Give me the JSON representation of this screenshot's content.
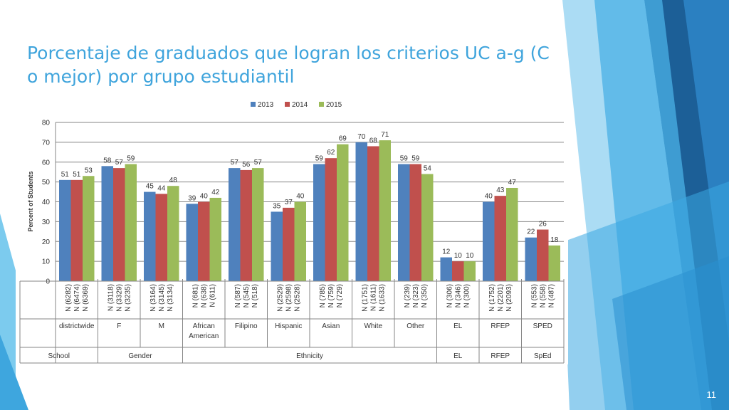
{
  "slide": {
    "title": "Porcentaje de graduados que logran los criterios UC a-g (C o mejor) por grupo estudiantil",
    "number": "11"
  },
  "colors": {
    "title": "#3fa4dc",
    "series": [
      "#4f81bd",
      "#c0504d",
      "#9bbb59"
    ]
  },
  "chart_data": {
    "type": "bar",
    "ylabel": "Percent of Students",
    "ylim": [
      0,
      80
    ],
    "yticks": [
      0,
      10,
      20,
      30,
      40,
      50,
      60,
      70,
      80
    ],
    "grid": true,
    "legend": "top-center",
    "series": [
      {
        "name": "2013",
        "values": [
          51,
          58,
          45,
          39,
          57,
          35,
          59,
          70,
          59,
          12,
          40,
          22
        ]
      },
      {
        "name": "2014",
        "values": [
          51,
          57,
          44,
          40,
          56,
          37,
          62,
          68,
          59,
          10,
          43,
          26
        ]
      },
      {
        "name": "2015",
        "values": [
          53,
          59,
          48,
          42,
          57,
          40,
          69,
          71,
          54,
          10,
          47,
          18
        ]
      }
    ],
    "categories": [
      {
        "label": "districtwide",
        "n": [
          "N (6282)",
          "N (6474)",
          "N (6369)"
        ]
      },
      {
        "label": "F",
        "n": [
          "N (3118)",
          "N (3329)",
          "N (3235)"
        ]
      },
      {
        "label": "M",
        "n": [
          "N (3164)",
          "N (3145)",
          "N (3134)"
        ]
      },
      {
        "label": "African American",
        "n": [
          "N (681)",
          "N (638)",
          "N (611)"
        ]
      },
      {
        "label": "Filipino",
        "n": [
          "N (587)",
          "N (545)",
          "N (518)"
        ]
      },
      {
        "label": "Hispanic",
        "n": [
          "N (2529)",
          "N (2598)",
          "N (2528)"
        ]
      },
      {
        "label": "Asian",
        "n": [
          "N (785)",
          "N (759)",
          "N (729)"
        ]
      },
      {
        "label": "White",
        "n": [
          "N (1751)",
          "N (1611)",
          "N (1633)"
        ]
      },
      {
        "label": "Other",
        "n": [
          "N (239)",
          "N (323)",
          "N (350)"
        ]
      },
      {
        "label": "EL",
        "n": [
          "N (306)",
          "N (346)",
          "N (300)"
        ]
      },
      {
        "label": "RFEP",
        "n": [
          "N (1752)",
          "N (2201)",
          "N (2093)"
        ]
      },
      {
        "label": "SPED",
        "n": [
          "N (553)",
          "N (558)",
          "N (487)"
        ]
      }
    ],
    "groups": [
      {
        "label": "School",
        "start": 0,
        "end": 0
      },
      {
        "label": "Gender",
        "start": 1,
        "end": 2
      },
      {
        "label": "Ethnicity",
        "start": 3,
        "end": 8
      },
      {
        "label": "EL",
        "start": 9,
        "end": 9
      },
      {
        "label": "RFEP",
        "start": 10,
        "end": 10
      },
      {
        "label": "SpEd",
        "start": 11,
        "end": 11
      }
    ]
  }
}
